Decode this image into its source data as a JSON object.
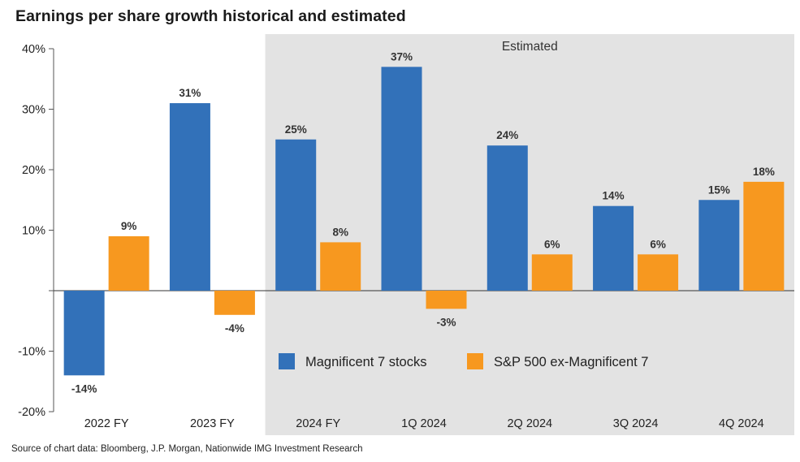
{
  "title": "Earnings per share growth historical and estimated",
  "source": "Source of chart data: Bloomberg, J.P. Morgan, Nationwide IMG Investment Research",
  "colors": {
    "magnificent": "#3271b9",
    "sp500": "#f7981f",
    "estimated_bg": "#e3e3e3"
  },
  "chart_data": {
    "type": "bar",
    "categories": [
      "2022 FY",
      "2023 FY",
      "2024 FY",
      "1Q 2024",
      "2Q 2024",
      "3Q 2024",
      "4Q 2024"
    ],
    "series": [
      {
        "name": "Magnificent 7 stocks",
        "values": [
          -14,
          31,
          25,
          37,
          24,
          14,
          15
        ],
        "labels": [
          "-14%",
          "31%",
          "25%",
          "37%",
          "24%",
          "14%",
          "15%"
        ]
      },
      {
        "name": "S&P 500 ex-Magnificent 7",
        "values": [
          9,
          -4,
          8,
          -3,
          6,
          6,
          18
        ],
        "labels": [
          "9%",
          "-4%",
          "8%",
          "-3%",
          "6%",
          "6%",
          "18%"
        ]
      }
    ],
    "ylim": [
      -20,
      40
    ],
    "yticks": [
      40,
      30,
      20,
      10,
      0,
      -10,
      -20
    ],
    "ytick_labels": [
      "40%",
      "30%",
      "20%",
      "10%",
      "",
      "-10%",
      "-20%"
    ],
    "unit": "%",
    "xlabel": "",
    "ylabel": "",
    "estimated_label": "Estimated",
    "estimated_from_category": "2024 FY",
    "legend_position": "inside-lower-right",
    "grid": false
  }
}
